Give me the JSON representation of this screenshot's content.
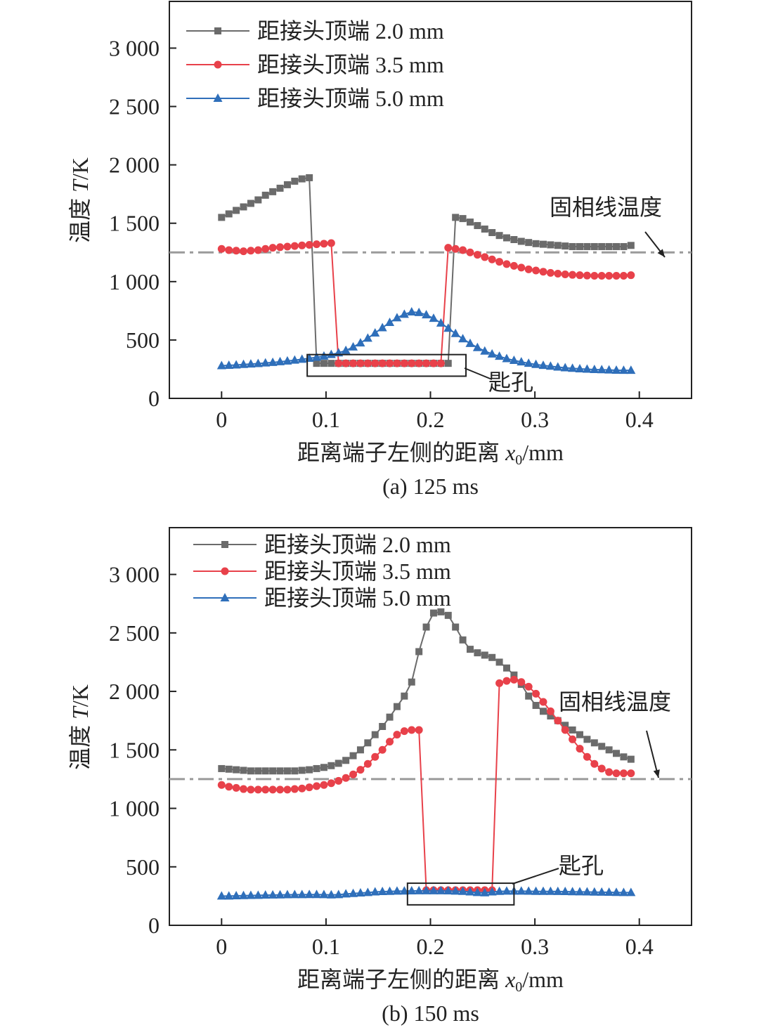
{
  "chart_data": [
    {
      "type": "line",
      "caption": "(a) 125 ms",
      "xlabel_prefix": "距离端子左侧的距离 ",
      "xlabel_var": "x",
      "xlabel_sub": "0",
      "xlabel_unit": "/mm",
      "ylabel_prefix": "温度 ",
      "ylabel_var": "T",
      "ylabel_unit": "/K",
      "xlim": [
        -0.05,
        0.45
      ],
      "ylim": [
        0,
        3400
      ],
      "xticks": [
        0,
        0.1,
        0.2,
        0.3,
        0.4
      ],
      "xtick_labels": [
        "0",
        "0.1",
        "0.2",
        "0.3",
        "0.4"
      ],
      "yticks": [
        0,
        500,
        1000,
        1500,
        2000,
        2500,
        3000
      ],
      "ytick_labels": [
        "0",
        "500",
        "1 000",
        "1 500",
        "2 000",
        "2 500",
        "3 000"
      ],
      "legend_position": "top-left",
      "solidus": {
        "label": "固相线温度",
        "value": 1250,
        "color": "#9a9a9a"
      },
      "keyhole": {
        "label": "匙孔",
        "x_range": [
          0.082,
          0.234
        ],
        "y_range": [
          190,
          375
        ]
      },
      "x_start": 0,
      "x_step": 0.007,
      "series": [
        {
          "name": "距接头顶端 2.0 mm",
          "color": "#6b6b6b",
          "marker": "square",
          "values": [
            1550,
            1580,
            1610,
            1640,
            1670,
            1700,
            1740,
            1770,
            1800,
            1830,
            1860,
            1880,
            1890,
            300,
            300,
            300,
            300,
            300,
            300,
            300,
            300,
            300,
            300,
            300,
            300,
            300,
            300,
            300,
            300,
            300,
            300,
            300,
            1550,
            1540,
            1510,
            1480,
            1450,
            1420,
            1395,
            1375,
            1360,
            1345,
            1335,
            1325,
            1320,
            1315,
            1310,
            1305,
            1300,
            1300,
            1300,
            1300,
            1300,
            1300,
            1300,
            1300,
            1310
          ]
        },
        {
          "name": "距接头顶端 3.5 mm",
          "color": "#e8414a",
          "marker": "circle",
          "values": [
            1280,
            1270,
            1265,
            1260,
            1265,
            1270,
            1280,
            1290,
            1295,
            1300,
            1305,
            1310,
            1315,
            1320,
            1325,
            1330,
            300,
            300,
            300,
            300,
            300,
            300,
            300,
            300,
            300,
            300,
            300,
            300,
            300,
            300,
            300,
            1290,
            1280,
            1270,
            1250,
            1230,
            1210,
            1190,
            1170,
            1150,
            1135,
            1120,
            1105,
            1095,
            1085,
            1075,
            1068,
            1062,
            1058,
            1055,
            1052,
            1050,
            1050,
            1050,
            1050,
            1050,
            1055
          ]
        },
        {
          "name": "距接头顶端 5.0 mm",
          "color": "#2f6fba",
          "marker": "triangle",
          "values": [
            280,
            283,
            286,
            290,
            294,
            298,
            303,
            308,
            314,
            320,
            327,
            335,
            343,
            352,
            362,
            375,
            390,
            410,
            440,
            475,
            515,
            560,
            605,
            650,
            690,
            720,
            740,
            735,
            715,
            685,
            645,
            600,
            555,
            510,
            470,
            435,
            405,
            380,
            360,
            340,
            325,
            312,
            300,
            290,
            282,
            275,
            268,
            262,
            257,
            253,
            250,
            247,
            245,
            243,
            241,
            240,
            240
          ]
        }
      ]
    },
    {
      "type": "line",
      "caption": "(b) 150 ms",
      "xlabel_prefix": "距离端子左侧的距离 ",
      "xlabel_var": "x",
      "xlabel_sub": "0",
      "xlabel_unit": "/mm",
      "ylabel_prefix": "温度 ",
      "ylabel_var": "T",
      "ylabel_unit": "/K",
      "xlim": [
        -0.05,
        0.45
      ],
      "ylim": [
        0,
        3400
      ],
      "xticks": [
        0,
        0.1,
        0.2,
        0.3,
        0.4
      ],
      "xtick_labels": [
        "0",
        "0.1",
        "0.2",
        "0.3",
        "0.4"
      ],
      "yticks": [
        0,
        500,
        1000,
        1500,
        2000,
        2500,
        3000
      ],
      "ytick_labels": [
        "0",
        "500",
        "1 000",
        "1 500",
        "2 000",
        "2 500",
        "3 000"
      ],
      "legend_position": "top-left",
      "solidus": {
        "label": "固相线温度",
        "value": 1250,
        "color": "#9a9a9a"
      },
      "keyhole": {
        "label": "匙孔",
        "x_range": [
          0.178,
          0.28
        ],
        "y_range": [
          175,
          360
        ]
      },
      "x_start": 0,
      "x_step": 0.007,
      "series": [
        {
          "name": "距接头顶端 2.0 mm",
          "color": "#6b6b6b",
          "marker": "square",
          "values": [
            1340,
            1335,
            1330,
            1325,
            1320,
            1320,
            1320,
            1320,
            1320,
            1320,
            1320,
            1325,
            1330,
            1340,
            1350,
            1365,
            1385,
            1410,
            1450,
            1500,
            1560,
            1630,
            1700,
            1780,
            1870,
            1960,
            2080,
            2340,
            2550,
            2670,
            2680,
            2650,
            2550,
            2440,
            2360,
            2330,
            2310,
            2290,
            2250,
            2200,
            2140,
            2060,
            1960,
            1880,
            1830,
            1790,
            1750,
            1710,
            1670,
            1630,
            1590,
            1560,
            1530,
            1500,
            1470,
            1440,
            1420
          ]
        },
        {
          "name": "距接头顶端 3.5 mm",
          "color": "#e8414a",
          "marker": "circle",
          "values": [
            1200,
            1185,
            1175,
            1165,
            1160,
            1160,
            1160,
            1160,
            1160,
            1160,
            1165,
            1170,
            1180,
            1190,
            1200,
            1215,
            1235,
            1260,
            1290,
            1330,
            1380,
            1440,
            1500,
            1570,
            1630,
            1660,
            1670,
            1670,
            300,
            300,
            300,
            300,
            300,
            300,
            300,
            300,
            300,
            300,
            2070,
            2090,
            2100,
            2080,
            2040,
            1980,
            1910,
            1830,
            1750,
            1670,
            1590,
            1510,
            1440,
            1380,
            1340,
            1310,
            1300,
            1300,
            1300
          ]
        },
        {
          "name": "距接头顶端 5.0 mm",
          "color": "#2f6fba",
          "marker": "triangle",
          "values": [
            250,
            250,
            252,
            254,
            255,
            256,
            258,
            259,
            260,
            261,
            262,
            262,
            263,
            263,
            262,
            260,
            262,
            268,
            272,
            276,
            280,
            285,
            288,
            290,
            292,
            293,
            294,
            295,
            295,
            295,
            295,
            294,
            292,
            290,
            285,
            280,
            278,
            285,
            290,
            292,
            292,
            292,
            291,
            290,
            290,
            290,
            289,
            288,
            287,
            286,
            285,
            284,
            283,
            282,
            281,
            280,
            280
          ]
        }
      ]
    }
  ]
}
